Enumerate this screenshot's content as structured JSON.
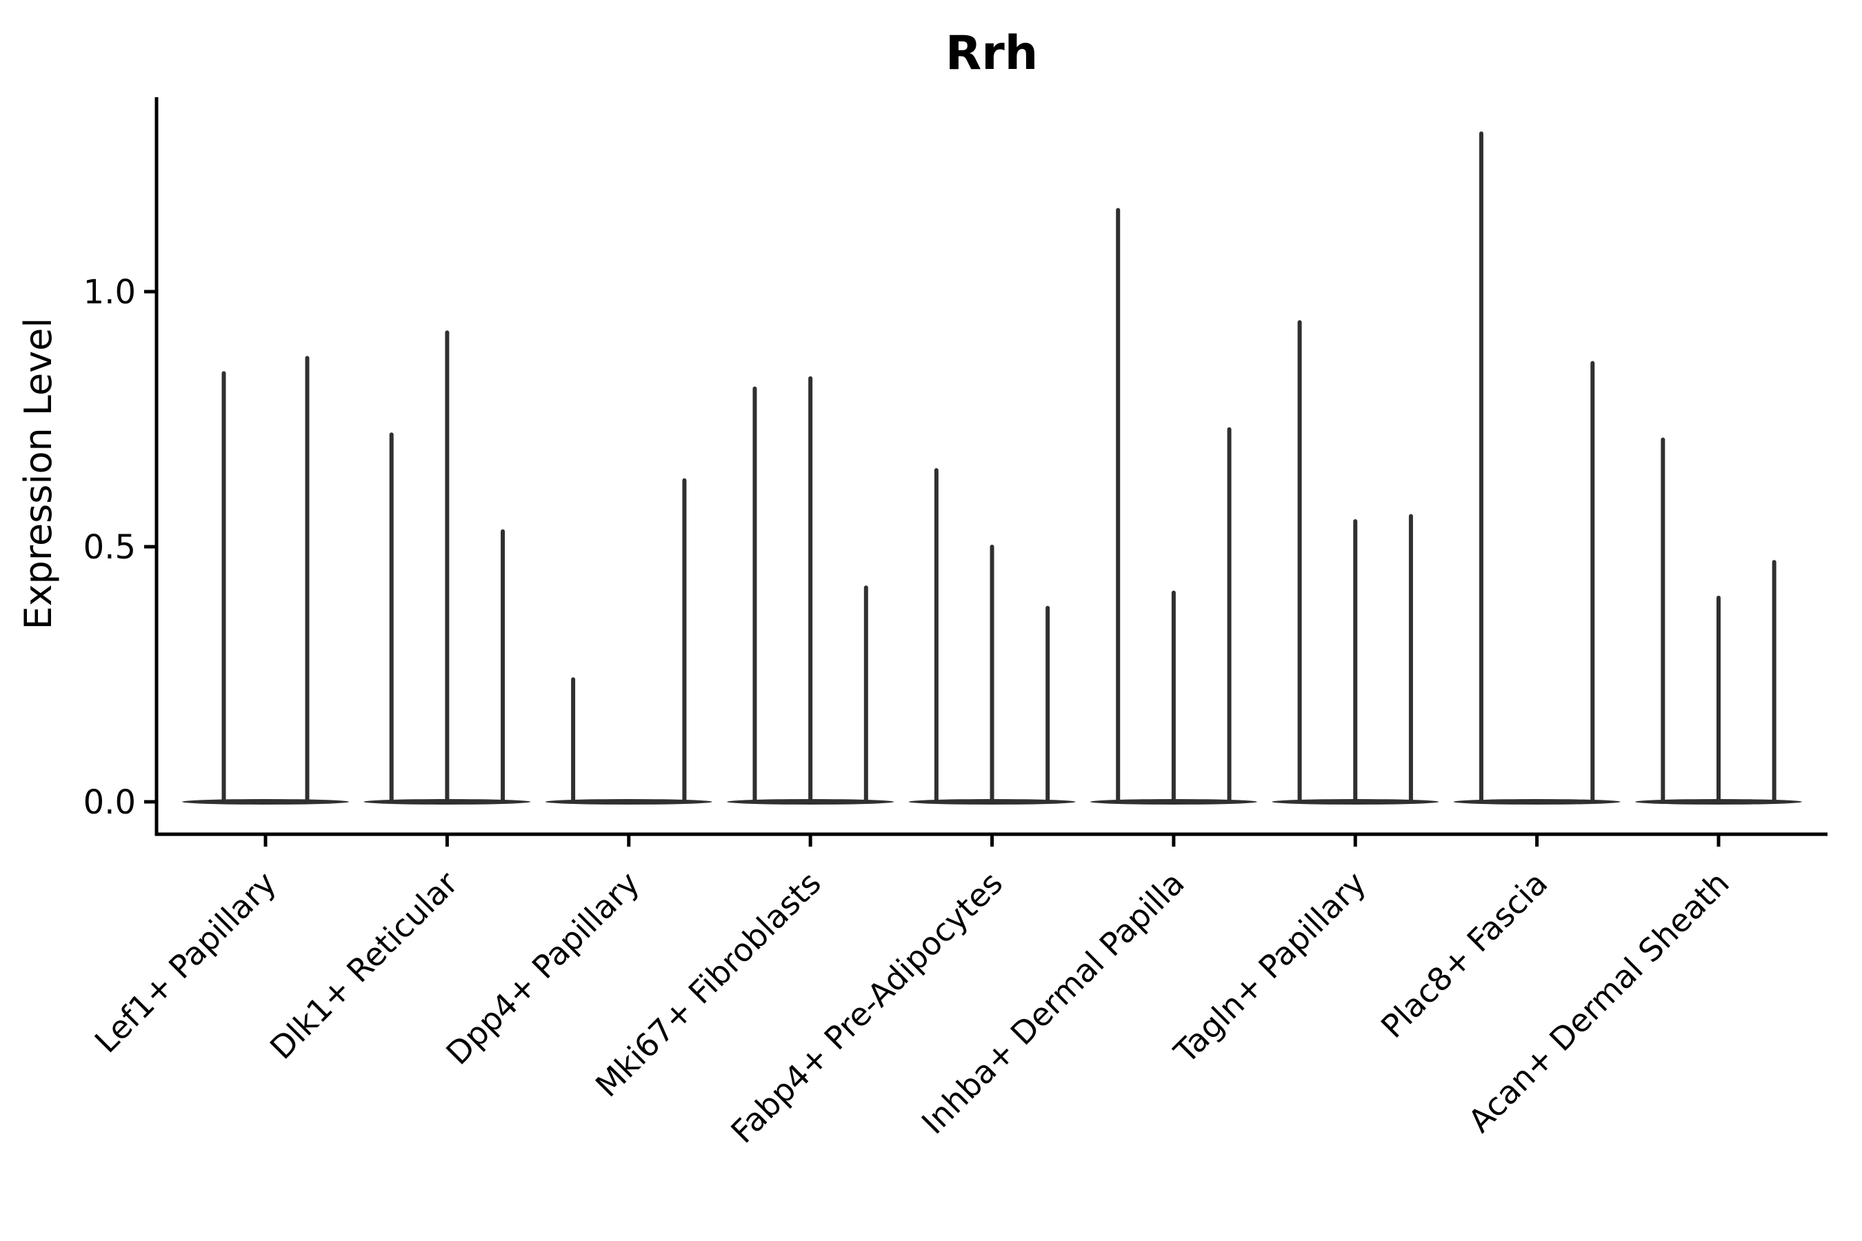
{
  "colors": {
    "violin_stroke": "#303030",
    "axis": "#000000",
    "background": "#ffffff"
  },
  "chart_data": {
    "type": "violin",
    "title": "Rrh",
    "xlabel": "",
    "ylabel": "Expression Level",
    "ylim": [
      -0.06,
      1.38
    ],
    "yticks": [
      0.0,
      0.5,
      1.0
    ],
    "ytick_labels": [
      "0.0",
      "0.5",
      "1.0"
    ],
    "grid": false,
    "legend": "none",
    "xtick_rotation_degrees": 45,
    "description": "Needle-shaped violins: expression is ~0 for most cells (wide flat base at 0) with a thin spike up to the maximum expression value per violin; some categories contain 2-3 split violins; zero entries are violins that are completely flat at 0.",
    "categories": [
      {
        "label": "Lef1+ Papillary",
        "violin_maxima": [
          0.84,
          0.87
        ]
      },
      {
        "label": "Dlk1+ Reticular",
        "violin_maxima": [
          0.72,
          0.92,
          0.53
        ]
      },
      {
        "label": "Dpp4+ Papillary",
        "violin_maxima": [
          0.24,
          0,
          0.63
        ]
      },
      {
        "label": "Mki67+ Fibroblasts",
        "violin_maxima": [
          0.81,
          0.83,
          0.42
        ]
      },
      {
        "label": "Fabp4+ Pre-Adipocytes",
        "violin_maxima": [
          0.65,
          0.5,
          0.38
        ]
      },
      {
        "label": "Inhba+ Dermal Papilla",
        "violin_maxima": [
          1.16,
          0.41,
          0.73
        ]
      },
      {
        "label": "Tagln+ Papillary",
        "violin_maxima": [
          0.94,
          0.55,
          0.56
        ]
      },
      {
        "label": "Plac8+ Fascia",
        "violin_maxima": [
          1.31,
          0,
          0.86
        ]
      },
      {
        "label": "Acan+ Dermal Sheath",
        "violin_maxima": [
          0.71,
          0.4,
          0.47
        ]
      }
    ]
  }
}
